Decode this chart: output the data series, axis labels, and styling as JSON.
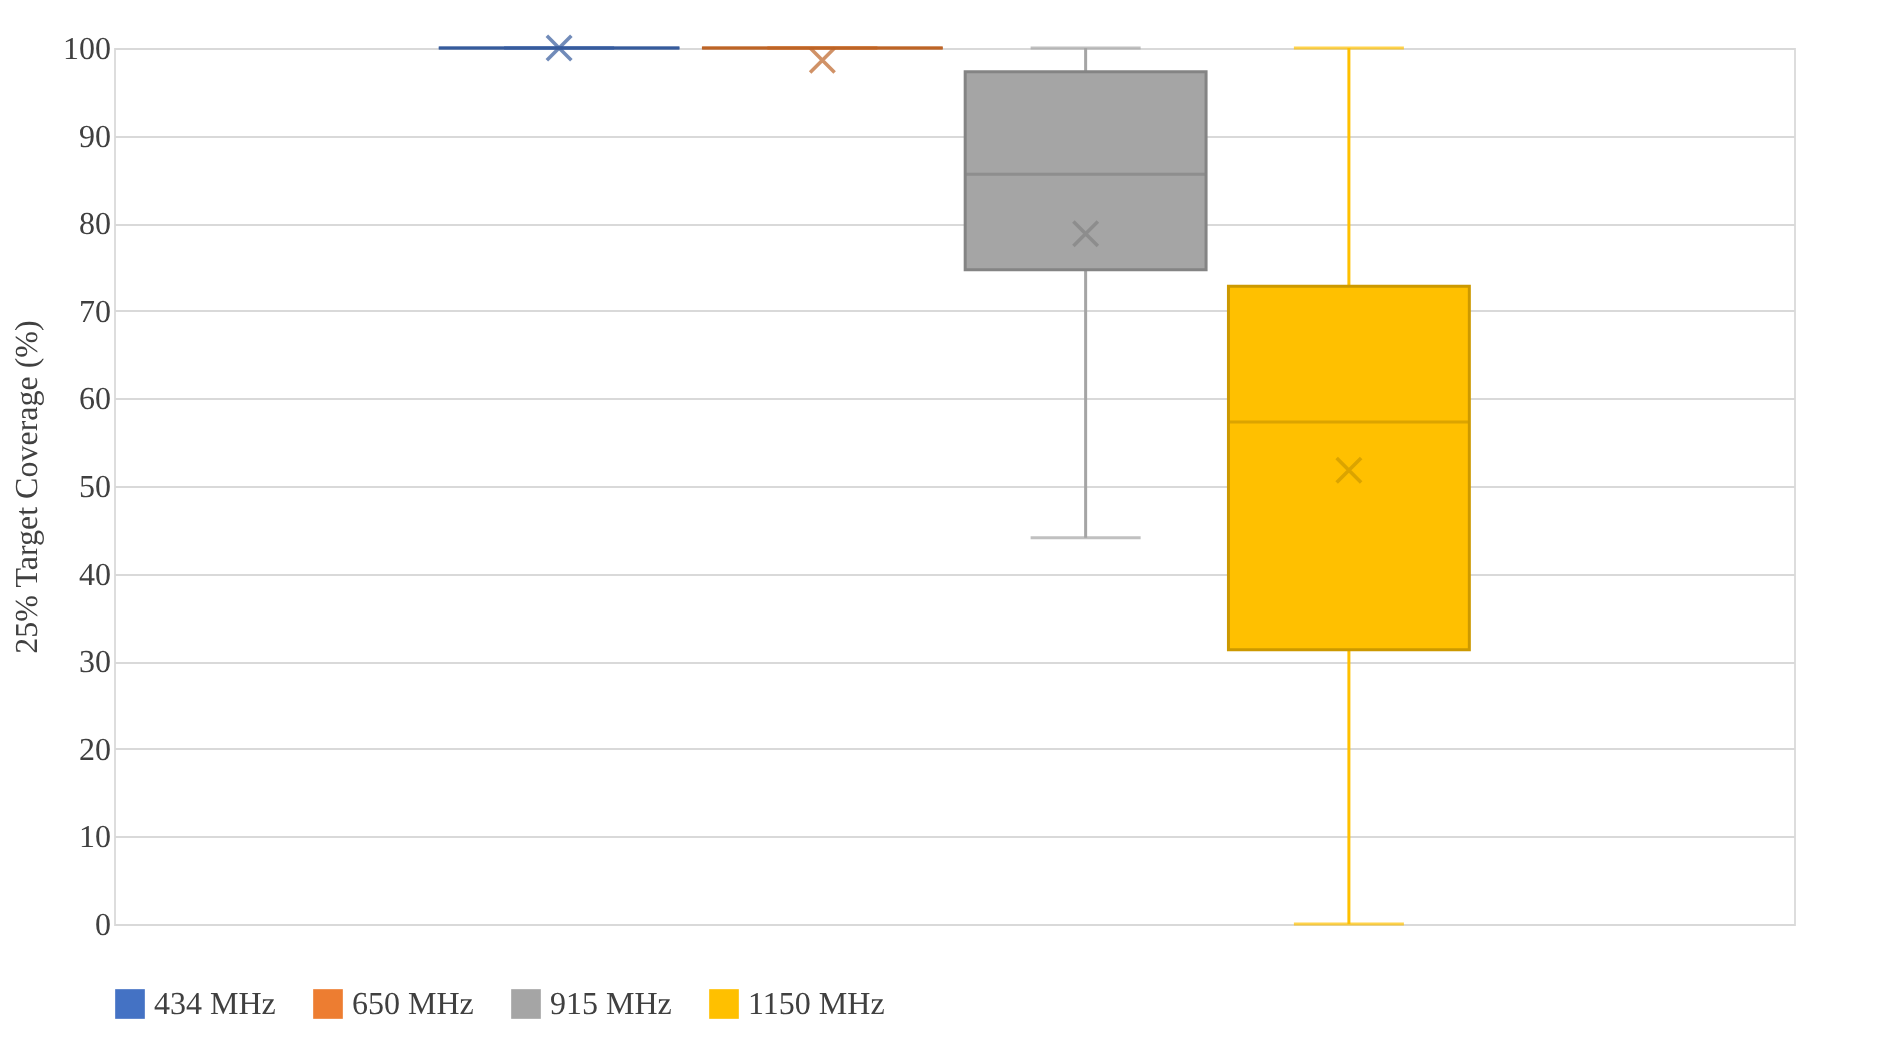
{
  "chart_data": {
    "type": "box",
    "ylabel": "25% Target Coverage  (%)",
    "categories": [
      null
    ],
    "ylim": [
      0,
      100
    ],
    "yticks": [
      0,
      10,
      20,
      30,
      40,
      50,
      60,
      70,
      80,
      90,
      100
    ],
    "grid": "y",
    "legend": "bottom",
    "series": [
      {
        "name": "434 MHz",
        "color": "#4472c4",
        "boxes": [
          {
            "low": 100,
            "q1": 100,
            "median": 100,
            "q3": 100,
            "high": 100,
            "mean": 100
          }
        ]
      },
      {
        "name": "650 MHz",
        "color": "#ed7d31",
        "boxes": [
          {
            "low": 100,
            "q1": 100,
            "median": 100,
            "q3": 100,
            "high": 100,
            "mean": 98.6
          }
        ]
      },
      {
        "name": "915 MHz",
        "color": "#a5a5a5",
        "boxes": [
          {
            "low": 44.1,
            "q1": 74.7,
            "median": 85.6,
            "q3": 97.3,
            "high": 100,
            "mean": 78.8
          }
        ]
      },
      {
        "name": "1150 MHz",
        "color": "#ffc000",
        "boxes": [
          {
            "low": 0,
            "q1": 31.3,
            "median": 57.3,
            "q3": 72.8,
            "high": 100,
            "mean": 51.8
          }
        ]
      }
    ]
  }
}
